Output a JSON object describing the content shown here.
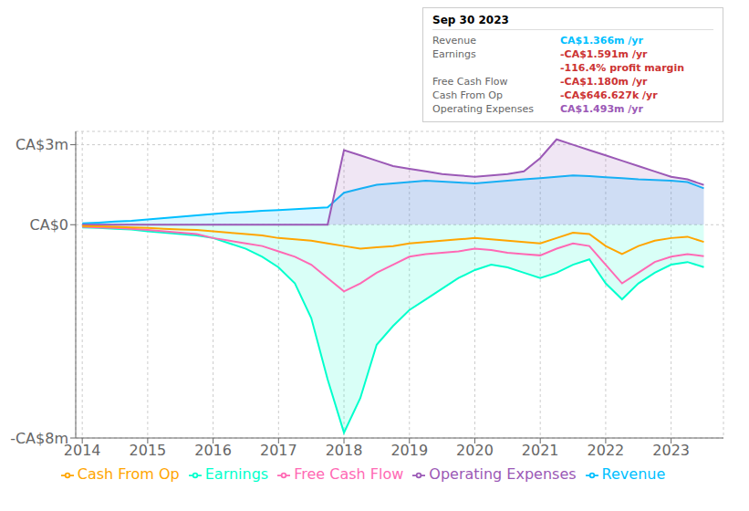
{
  "chart_data": {
    "type": "line",
    "x": [
      2014,
      2014.25,
      2014.5,
      2014.75,
      2015,
      2015.25,
      2015.5,
      2015.75,
      2016,
      2016.25,
      2016.5,
      2016.75,
      2017,
      2017.25,
      2017.5,
      2017.75,
      2018,
      2018.25,
      2018.5,
      2018.75,
      2019,
      2019.25,
      2019.5,
      2019.75,
      2020,
      2020.25,
      2020.5,
      2020.75,
      2021,
      2021.25,
      2021.5,
      2021.75,
      2022,
      2022.25,
      2022.5,
      2022.75,
      2023,
      2023.25,
      2023.5
    ],
    "series": [
      {
        "name": "Revenue",
        "color": "#00bfff",
        "type": "area",
        "values": [
          0.05,
          0.08,
          0.12,
          0.15,
          0.2,
          0.25,
          0.3,
          0.35,
          0.4,
          0.45,
          0.48,
          0.52,
          0.55,
          0.58,
          0.62,
          0.65,
          1.2,
          1.35,
          1.5,
          1.55,
          1.6,
          1.65,
          1.62,
          1.58,
          1.55,
          1.6,
          1.65,
          1.7,
          1.75,
          1.8,
          1.85,
          1.82,
          1.78,
          1.75,
          1.7,
          1.68,
          1.65,
          1.6,
          1.366
        ]
      },
      {
        "name": "Earnings",
        "color": "#00ffcc",
        "type": "area",
        "values": [
          -0.1,
          -0.12,
          -0.15,
          -0.18,
          -0.25,
          -0.3,
          -0.35,
          -0.4,
          -0.5,
          -0.7,
          -0.9,
          -1.2,
          -1.6,
          -2.2,
          -3.5,
          -5.8,
          -7.8,
          -6.5,
          -4.5,
          -3.8,
          -3.2,
          -2.8,
          -2.4,
          -2.0,
          -1.7,
          -1.5,
          -1.6,
          -1.8,
          -2.0,
          -1.8,
          -1.5,
          -1.3,
          -2.2,
          -2.8,
          -2.2,
          -1.8,
          -1.5,
          -1.4,
          -1.591
        ]
      },
      {
        "name": "Free Cash Flow",
        "color": "#ff69b4",
        "type": "line",
        "values": [
          -0.08,
          -0.1,
          -0.12,
          -0.15,
          -0.2,
          -0.25,
          -0.3,
          -0.35,
          -0.5,
          -0.6,
          -0.7,
          -0.8,
          -1.0,
          -1.2,
          -1.5,
          -2.0,
          -2.5,
          -2.2,
          -1.8,
          -1.5,
          -1.2,
          -1.1,
          -1.05,
          -1.0,
          -0.9,
          -0.95,
          -1.05,
          -1.1,
          -1.15,
          -0.9,
          -0.7,
          -0.8,
          -1.5,
          -2.2,
          -1.8,
          -1.4,
          -1.2,
          -1.1,
          -1.18
        ]
      },
      {
        "name": "Cash From Op",
        "color": "#ffa500",
        "type": "line",
        "values": [
          -0.05,
          -0.06,
          -0.08,
          -0.1,
          -0.12,
          -0.15,
          -0.18,
          -0.2,
          -0.25,
          -0.3,
          -0.35,
          -0.4,
          -0.5,
          -0.55,
          -0.6,
          -0.7,
          -0.8,
          -0.9,
          -0.85,
          -0.8,
          -0.7,
          -0.65,
          -0.6,
          -0.55,
          -0.5,
          -0.55,
          -0.6,
          -0.65,
          -0.7,
          -0.5,
          -0.3,
          -0.35,
          -0.8,
          -1.1,
          -0.8,
          -0.6,
          -0.5,
          -0.45,
          -0.6466
        ]
      },
      {
        "name": "Operating Expenses",
        "color": "#9b59b6",
        "type": "area",
        "values": [
          0.0,
          0.0,
          0.0,
          0.0,
          0.0,
          0.0,
          0.0,
          0.0,
          0.0,
          0.0,
          0.0,
          0.0,
          0.0,
          0.0,
          0.0,
          0.0,
          2.8,
          2.6,
          2.4,
          2.2,
          2.1,
          2.0,
          1.9,
          1.85,
          1.8,
          1.85,
          1.9,
          2.0,
          2.5,
          3.2,
          3.0,
          2.8,
          2.6,
          2.4,
          2.2,
          2.0,
          1.8,
          1.7,
          1.493
        ]
      }
    ],
    "xlim": [
      2013.9,
      2023.8
    ],
    "xticks": [
      2014,
      2015,
      2016,
      2017,
      2018,
      2019,
      2020,
      2021,
      2022,
      2023
    ],
    "ylim": [
      -8,
      3.5
    ],
    "yticks": [
      {
        "value": -8,
        "label": "-CA$8m"
      },
      {
        "value": 0,
        "label": "CA$0"
      },
      {
        "value": 3,
        "label": "CA$3m"
      }
    ],
    "grid": true,
    "legend": "bottom",
    "annotations": {
      "title": "Sep 30 2023",
      "rows": [
        {
          "label": "Revenue",
          "text": "CA$1.366m /yr",
          "color": "#00bfff"
        },
        {
          "label": "Earnings",
          "text": "-CA$1.591m /yr",
          "color": "#cc3333"
        },
        {
          "text": "-116.4% profit margin",
          "color": "#cc3333"
        },
        {
          "label": "Free Cash Flow",
          "text": "-CA$1.180m /yr",
          "color": "#cc3333"
        },
        {
          "label": "Cash From Op",
          "text": "-CA$646.627k /yr",
          "color": "#cc3333"
        },
        {
          "label": "Operating Expenses",
          "text": "CA$1.493m /yr",
          "color": "#9b59b6"
        }
      ]
    }
  }
}
